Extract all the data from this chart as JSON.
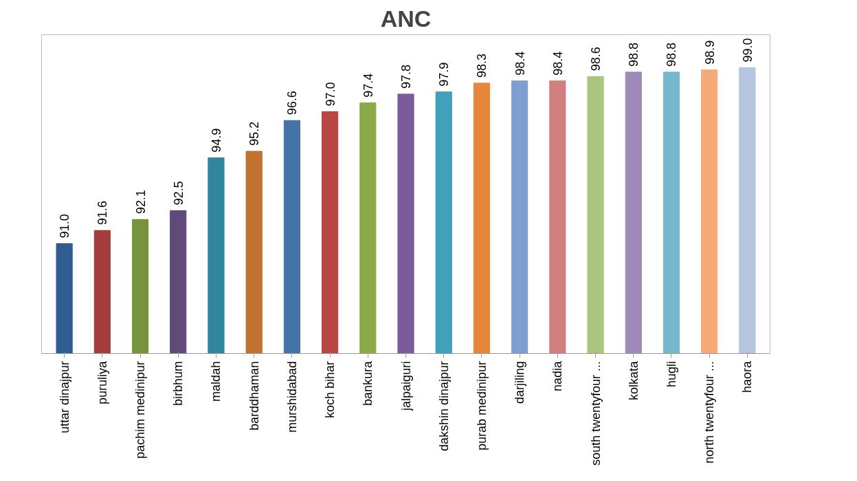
{
  "chart_data": {
    "type": "bar",
    "title": "ANC",
    "categories": [
      "uttar dinajpur",
      "puruliya",
      "pachim medinipur",
      "birbhum",
      "maldah",
      "barddhaman",
      "murshidabad",
      "koch bihar",
      "bankura",
      "jalpaiguri",
      "dakshin dinajpur",
      "purab medinipur",
      "darjiling",
      "nadia",
      "south twentyfour ...",
      "kolkata",
      "hugli",
      "north twentyfour ...",
      "haora"
    ],
    "values": [
      91.0,
      91.6,
      92.1,
      92.5,
      94.9,
      95.2,
      96.6,
      97.0,
      97.4,
      97.8,
      97.9,
      98.3,
      98.4,
      98.4,
      98.6,
      98.8,
      98.8,
      98.9,
      99.0
    ],
    "colors": [
      "#2f5d92",
      "#a33d3b",
      "#77933c",
      "#5f4a7b",
      "#31859c",
      "#c0722e",
      "#4572a7",
      "#b84744",
      "#8cab48",
      "#7a5b9c",
      "#41a0bb",
      "#e8873a",
      "#7f9fd0",
      "#d17f7f",
      "#aac57c",
      "#9d8ab9",
      "#75b7cc",
      "#f8a978",
      "#b5c4df"
    ],
    "value_labels": [
      "91.0",
      "91.6",
      "92.1",
      "92.5",
      "94.9",
      "95.2",
      "96.6",
      "97.0",
      "97.4",
      "97.8",
      "97.9",
      "98.3",
      "98.4",
      "98.4",
      "98.6",
      "98.8",
      "98.8",
      "98.9",
      "99.0"
    ],
    "ylim": [
      86,
      100.5
    ],
    "tick_labels": "x",
    "grid": false
  }
}
